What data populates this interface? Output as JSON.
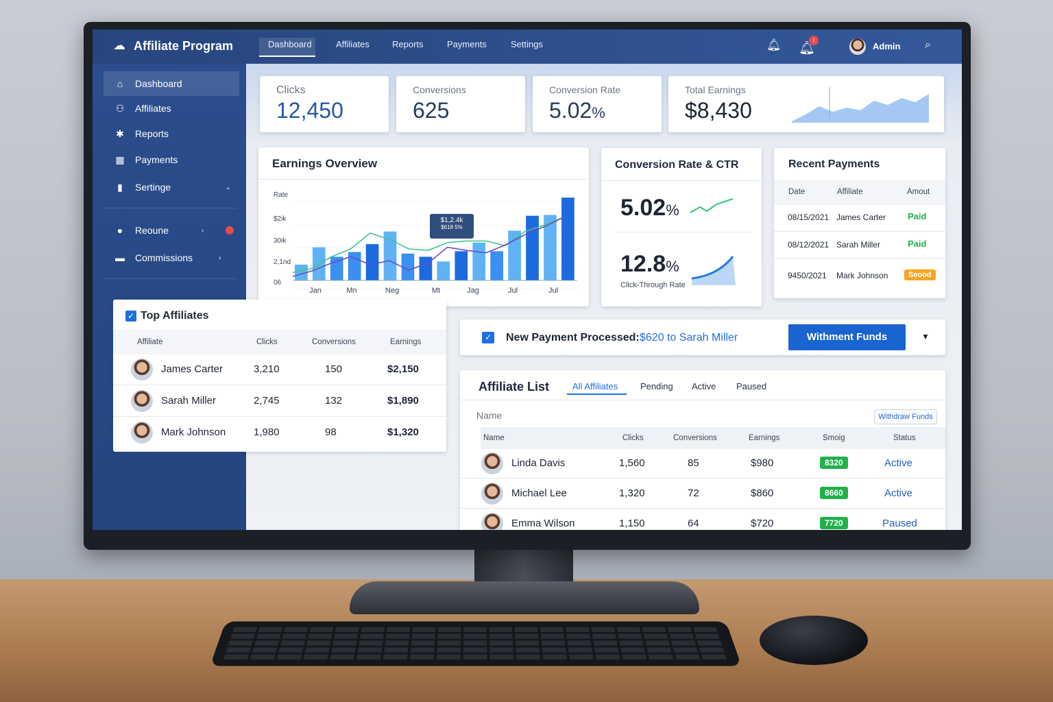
{
  "app": {
    "title": "Affiliate Program"
  },
  "topnav": {
    "items": [
      "Dashboard",
      "Affiliates",
      "Reports",
      "Payments",
      "Settings"
    ],
    "active": "Dashboard",
    "notification_badge": "!",
    "user": "Admin"
  },
  "sidebar": {
    "items": [
      {
        "label": "Dashboard",
        "icon": "home-icon"
      },
      {
        "label": "Affiliates",
        "icon": "users-icon"
      },
      {
        "label": "Reports",
        "icon": "reports-icon"
      },
      {
        "label": "Payments",
        "icon": "payments-icon"
      },
      {
        "label": "Sertinge",
        "icon": "settings-icon"
      },
      {
        "label": "Reoune",
        "icon": "circle-icon"
      },
      {
        "label": "Commissions",
        "icon": "wallet-icon"
      }
    ]
  },
  "stats": [
    {
      "label": "Clicks",
      "value": "12,450"
    },
    {
      "label": "Conversions",
      "value": "625"
    },
    {
      "label": "Conversion Rate",
      "value": "5.02",
      "unit": "%"
    },
    {
      "label": "Total Earnings",
      "value": "$8,430"
    }
  ],
  "earnings": {
    "title": "Earnings Overview",
    "y_ticks": [
      "Rate",
      "$2ik",
      "30ik",
      "2,1nd",
      "06"
    ],
    "x_ticks": [
      "Jan",
      "Mn",
      "Neg",
      "Mt",
      "Jag",
      "Jul",
      "Jul"
    ],
    "tooltip": {
      "line1": "$1,2.4k",
      "line2": "$618 5%"
    }
  },
  "chart_data": {
    "type": "bar",
    "note_units": "fraction of plot height",
    "bars": [
      0.2,
      0.42,
      0.3,
      0.36,
      0.46,
      0.62,
      0.34,
      0.3,
      0.24,
      0.37,
      0.48,
      0.37,
      0.63,
      0.82,
      0.83,
      1.05
    ],
    "bar_shades": [
      "light",
      "light",
      "mid",
      "mid",
      "dark",
      "light",
      "mid",
      "dark",
      "light",
      "dark",
      "light",
      "mid",
      "light",
      "dark",
      "light",
      "dark"
    ],
    "series": [
      {
        "color": "#3fc48a",
        "values": [
          0.1,
          0.15,
          0.3,
          0.4,
          0.6,
          0.52,
          0.4,
          0.38,
          0.48,
          0.5,
          0.5,
          0.44,
          0.62,
          0.7,
          0.8
        ]
      },
      {
        "color": "#6a4bc4",
        "values": [
          0.05,
          0.12,
          0.22,
          0.3,
          0.2,
          0.25,
          0.13,
          0.22,
          0.42,
          0.38,
          0.35,
          0.45,
          0.58,
          0.68,
          0.8
        ]
      }
    ]
  },
  "ctr": {
    "title": "Conversion Rate & CTR",
    "rate": "5.02",
    "rate_unit": "%",
    "ctr": "12.8",
    "ctr_unit": "%",
    "ctr_label": "Click-Through Rate"
  },
  "recent_payments": {
    "title": "Recent Payments",
    "headers": [
      "Date",
      "Affiliate",
      "Amout"
    ],
    "rows": [
      {
        "date": "08/15/2021",
        "name": "James Carter",
        "status": "Paid"
      },
      {
        "date": "08/12/2021",
        "name": "Sarah Miller",
        "status": "Paid"
      },
      {
        "date": "9450/2021",
        "name": "Mark Johnson",
        "status": "Seood"
      }
    ]
  },
  "top_affiliates": {
    "title": "Top Affiliates",
    "headers": [
      "Affiliate",
      "Clicks",
      "Conversions",
      "Earnings"
    ],
    "rows": [
      {
        "name": "James Carter",
        "clicks": "3,210",
        "conv": "150",
        "earn": "$2,150"
      },
      {
        "name": "Sarah Miller",
        "clicks": "2,745",
        "conv": "132",
        "earn": "$1,890"
      },
      {
        "name": "Mark Johnson",
        "clicks": "1,980",
        "conv": "98",
        "earn": "$1,320"
      }
    ]
  },
  "notice": {
    "label": "New Payment Processed:",
    "detail": "$620 to Sarah Miller",
    "button": "Withment Funds"
  },
  "affiliate_list": {
    "title": "Affiliate List",
    "tabs": [
      "All Affiliates",
      "Pending",
      "Active",
      "Paused"
    ],
    "search_placeholder": "Name",
    "withdraw": "Withdraw Funds",
    "headers": [
      "Name",
      "Clicks",
      "Conversions",
      "Earnings",
      "Smoig",
      "Status"
    ],
    "rows": [
      {
        "name": "Linda Davis",
        "clicks": "1,560",
        "conv": "85",
        "earn": "$980",
        "badge": "8320",
        "status": "Active"
      },
      {
        "name": "Michael Lee",
        "clicks": "1,320",
        "conv": "72",
        "earn": "$860",
        "badge": "8660",
        "status": "Active"
      },
      {
        "name": "Emma Wilson",
        "clicks": "1,150",
        "conv": "64",
        "earn": "$720",
        "badge": "7720",
        "status": "Paused"
      }
    ]
  },
  "colors": {
    "accent": "#1f6fe0",
    "topbar": "#2c4d8d",
    "paid": "#22b14c",
    "pending": "#f5a623"
  }
}
